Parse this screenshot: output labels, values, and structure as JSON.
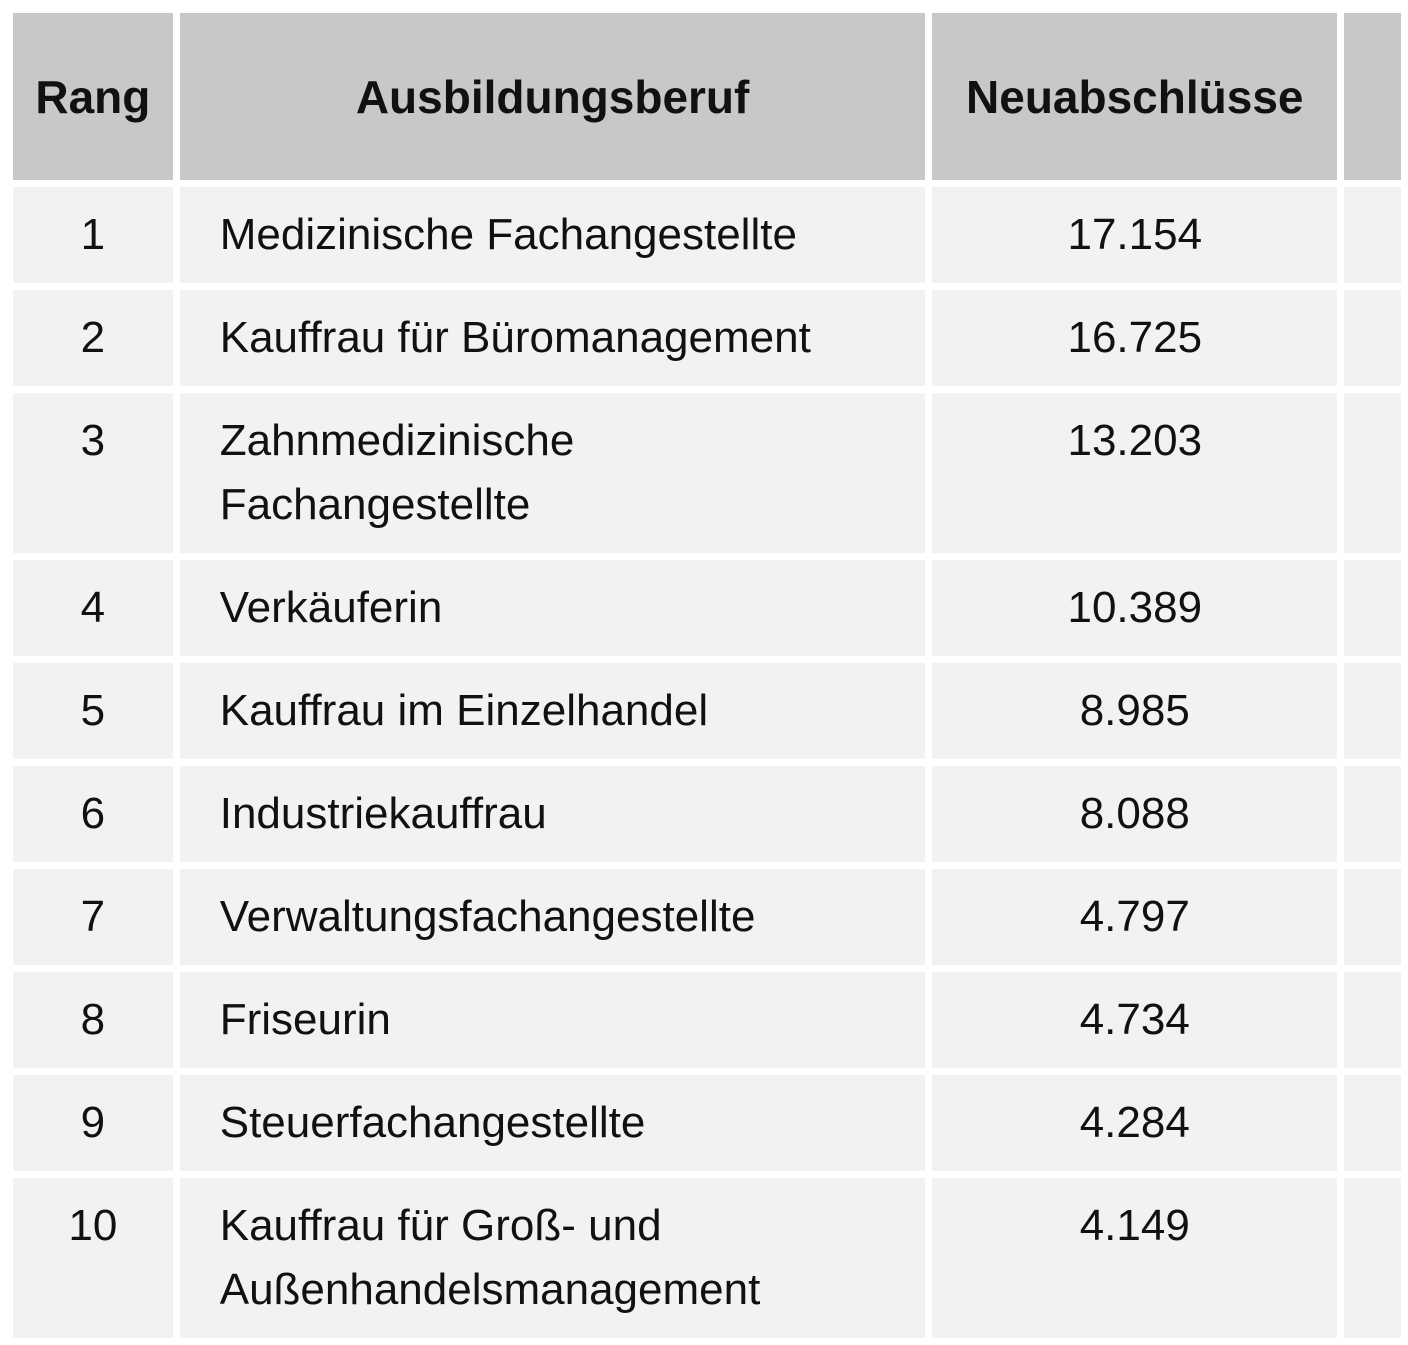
{
  "colors": {
    "header_bg": "#c8c8c8",
    "row_bg": "#f2f2f2",
    "gutter": "#ffffff",
    "text": "#111111"
  },
  "table": {
    "columns": [
      {
        "key": "rang",
        "label": "Rang"
      },
      {
        "key": "beruf",
        "label": "Ausbildungsberuf"
      },
      {
        "key": "neuabschluesse",
        "label": "Neuabschlüsse"
      }
    ],
    "rows": [
      {
        "rang": "1",
        "beruf": "Medizinische Fachangestellte",
        "neuabschluesse": "17.154"
      },
      {
        "rang": "2",
        "beruf": "Kauffrau für Büromanagement",
        "neuabschluesse": "16.725"
      },
      {
        "rang": "3",
        "beruf": "Zahnmedizinische\nFachangestellte",
        "neuabschluesse": "13.203"
      },
      {
        "rang": "4",
        "beruf": "Verkäuferin",
        "neuabschluesse": "10.389"
      },
      {
        "rang": "5",
        "beruf": "Kauffrau im Einzelhandel",
        "neuabschluesse": "8.985"
      },
      {
        "rang": "6",
        "beruf": "Industriekauffrau",
        "neuabschluesse": "8.088"
      },
      {
        "rang": "7",
        "beruf": "Verwaltungsfachangestellte",
        "neuabschluesse": "4.797"
      },
      {
        "rang": "8",
        "beruf": "Friseurin",
        "neuabschluesse": "4.734"
      },
      {
        "rang": "9",
        "beruf": "Steuerfachangestellte",
        "neuabschluesse": "4.284"
      },
      {
        "rang": "10",
        "beruf": "Kauffrau für Groß- und\nAußenhandelsmanagement",
        "neuabschluesse": "4.149"
      }
    ]
  },
  "chart_data": {
    "type": "table",
    "title": "",
    "columns": [
      "Rang",
      "Ausbildungsberuf",
      "Neuabschlüsse"
    ],
    "rows": [
      [
        1,
        "Medizinische Fachangestellte",
        17154
      ],
      [
        2,
        "Kauffrau für Büromanagement",
        16725
      ],
      [
        3,
        "Zahnmedizinische Fachangestellte",
        13203
      ],
      [
        4,
        "Verkäuferin",
        10389
      ],
      [
        5,
        "Kauffrau im Einzelhandel",
        8985
      ],
      [
        6,
        "Industriekauffrau",
        8088
      ],
      [
        7,
        "Verwaltungsfachangestellte",
        4797
      ],
      [
        8,
        "Friseurin",
        4734
      ],
      [
        9,
        "Steuerfachangestellte",
        4284
      ],
      [
        10,
        "Kauffrau für Groß- und Außenhandelsmanagement",
        4149
      ]
    ],
    "layout_hints": {
      "header_background": "#c8c8c8",
      "cell_background": "#f2f2f2",
      "separator": "white gutters, no borders",
      "right_column_and_bottom_row_clipped": true
    }
  }
}
